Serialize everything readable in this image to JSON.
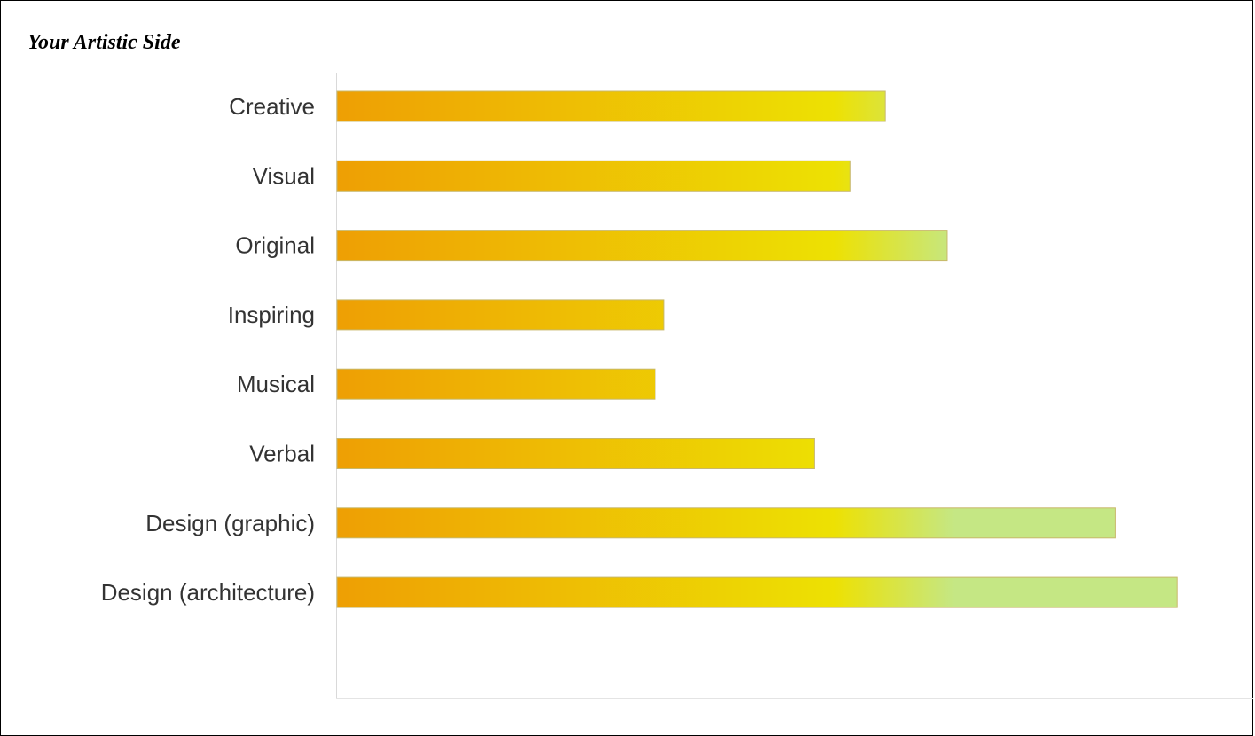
{
  "title": "Your Artistic Side",
  "chart_data": {
    "type": "bar",
    "orientation": "horizontal",
    "title": "Your Artistic Side",
    "categories": [
      "Creative",
      "Visual",
      "Original",
      "Inspiring",
      "Musical",
      "Verbal",
      "Design (graphic)",
      "Design (architecture)"
    ],
    "values": [
      62,
      58,
      69,
      37,
      36,
      54,
      88,
      95
    ],
    "xlim": [
      0,
      102
    ],
    "xlabel": "",
    "ylabel": "",
    "grid": false,
    "legend": "none",
    "colors": {
      "gradient_start": "#ee9f04",
      "gradient_mid": "#ede103",
      "gradient_end": "#c5e784",
      "bar_stroke": "#c8b86a",
      "axis": "#d9d9d9",
      "label": "#333333"
    }
  }
}
